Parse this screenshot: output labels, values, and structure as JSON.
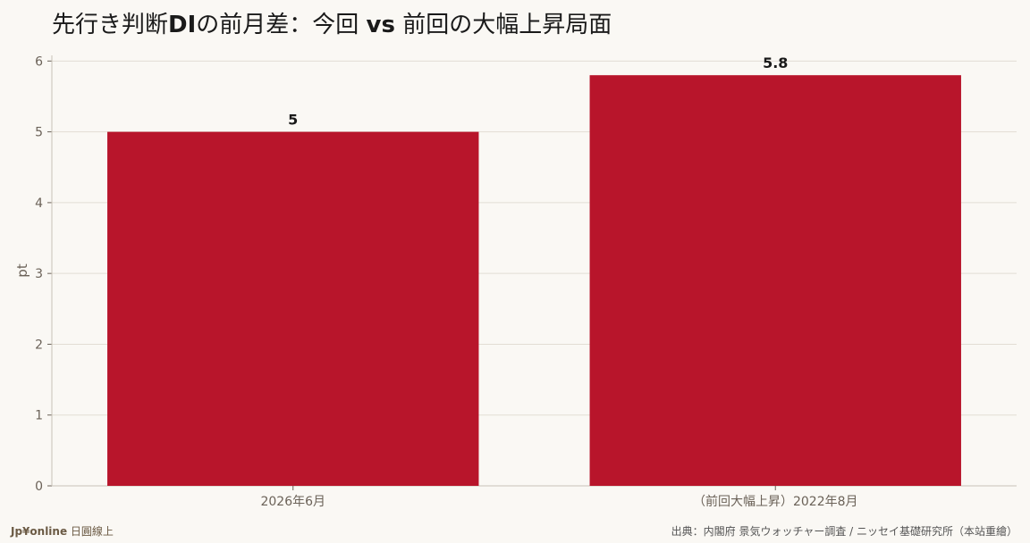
{
  "title": {
    "part1": "先行き判断",
    "part2": "DI",
    "part3": "の前月差：今回 ",
    "part4": "vs",
    "part5": " 前回の大幅上昇局面"
  },
  "footer": {
    "brand": "Jp¥online",
    "brand_suffix": " 日圓線上",
    "source": "出典：内閣府 景気ウォッチャー調査 / ニッセイ基礎研究所（本站重繪）"
  },
  "chart_data": {
    "type": "bar",
    "categories": [
      "2026年6月",
      "（前回大幅上昇）2022年8月"
    ],
    "values": [
      5,
      5.8
    ],
    "value_labels": [
      "5",
      "5.8"
    ],
    "ylabel": "pt",
    "xlabel": "",
    "ylim": [
      0,
      6
    ],
    "yticks": [
      0,
      1,
      2,
      3,
      4,
      5,
      6
    ],
    "grid": true,
    "bar_color": "#b8152b"
  }
}
